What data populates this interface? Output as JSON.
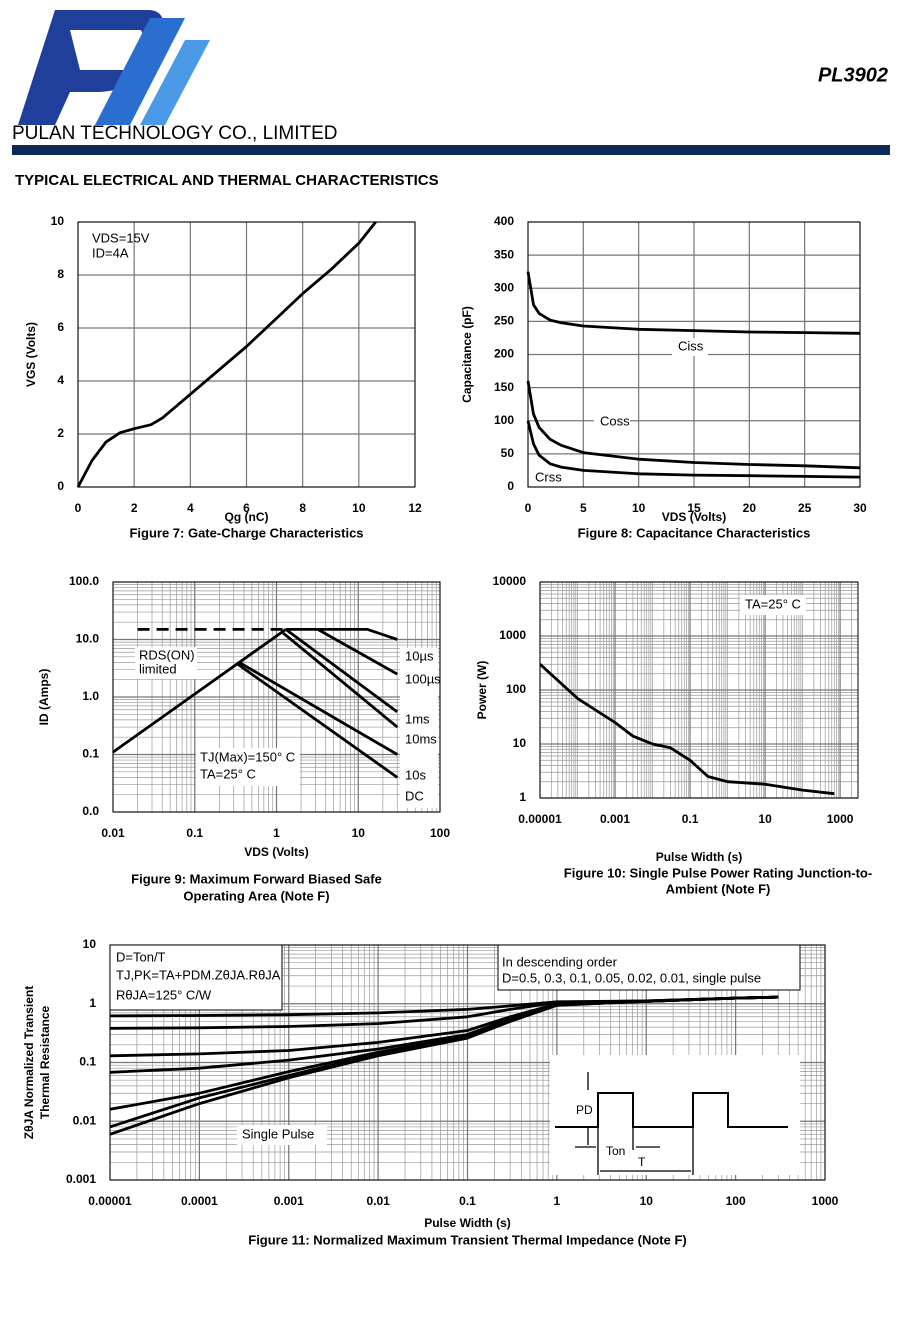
{
  "header": {
    "company": "PULAN TECHNOLOGY CO., LIMITED",
    "part": "PL3902",
    "section": "TYPICAL ELECTRICAL AND THERMAL CHARACTERISTICS"
  },
  "chart_data": [
    {
      "type": "line",
      "title": [
        "Figure 7: Gate-Charge Characteristics"
      ],
      "x_label": "Qg (nC)",
      "y_label": [
        "VGS (Volts)"
      ],
      "annotations": [
        "VDS=15V",
        "ID=4A"
      ],
      "x": [
        0,
        0.5,
        1,
        1.5,
        2,
        2.6,
        3,
        4,
        5,
        6,
        7,
        8,
        9,
        10,
        10.6
      ],
      "values": [
        0,
        1,
        1.7,
        2.05,
        2.2,
        2.35,
        2.6,
        3.5,
        4.4,
        5.3,
        6.3,
        7.3,
        8.2,
        9.2,
        10
      ],
      "color": "#000000",
      "xlim": [
        0,
        12
      ],
      "xticks": [
        0,
        2,
        4,
        6,
        8,
        10,
        12
      ],
      "ylim": [
        0,
        10
      ],
      "yticks": [
        0,
        2,
        4,
        6,
        8,
        10
      ],
      "grid": true
    },
    {
      "type": "line",
      "title": [
        "Figure 8: Capacitance Characteristics"
      ],
      "x_label": "VDS (Volts)",
      "y_label": [
        "Capacitance (pF)"
      ],
      "x": [
        0,
        0.5,
        1,
        2,
        3,
        5,
        10,
        15,
        20,
        25,
        30
      ],
      "series": [
        {
          "name": "Ciss",
          "color": "#000000",
          "values": [
            325,
            275,
            262,
            252,
            248,
            243,
            238,
            236,
            234,
            233,
            232
          ]
        },
        {
          "name": "Coss",
          "color": "#000000",
          "values": [
            160,
            110,
            90,
            72,
            63,
            52,
            42,
            37,
            34,
            32,
            29
          ]
        },
        {
          "name": "Crss",
          "color": "#000000",
          "values": [
            100,
            65,
            48,
            35,
            30,
            25,
            20,
            18,
            17,
            16,
            15
          ]
        }
      ],
      "xlim": [
        0,
        30
      ],
      "xticks": [
        0,
        5,
        10,
        15,
        20,
        25,
        30
      ],
      "ylim": [
        0,
        400
      ],
      "yticks": [
        0,
        50,
        100,
        150,
        200,
        250,
        300,
        350,
        400
      ],
      "grid": true
    },
    {
      "type": "line",
      "title": [
        "Figure 9: Maximum Forward Biased Safe",
        "Operating Area (Note F)"
      ],
      "x_label": "VDS (Volts)",
      "y_label": [
        "ID (Amps)"
      ],
      "annotations": [
        "RDS(ON)",
        "limited",
        "TJ(Max)=150° C",
        "TA=25° C"
      ],
      "series": [
        {
          "x": [
            0.01,
            1.3
          ],
          "values": [
            0.11,
            15
          ],
          "color": "#000000"
        },
        {
          "x": [
            0.02,
            1.2
          ],
          "values": [
            15,
            15
          ],
          "color": "#000000",
          "linestyle": "dashed"
        },
        {
          "name": "10µs",
          "x": [
            1.3,
            13,
            30
          ],
          "values": [
            15,
            15,
            10
          ],
          "color": "#000000"
        },
        {
          "name": "100µs",
          "x": [
            3.2,
            30
          ],
          "values": [
            15,
            2.5
          ],
          "color": "#000000"
        },
        {
          "name": "1ms",
          "x": [
            1.3,
            30
          ],
          "values": [
            15,
            0.55
          ],
          "color": "#000000"
        },
        {
          "name": "10ms",
          "x": [
            1.2,
            30
          ],
          "values": [
            13,
            0.3
          ],
          "color": "#000000"
        },
        {
          "name": "10s",
          "x": [
            0.35,
            30
          ],
          "values": [
            4,
            0.1
          ],
          "color": "#000000"
        },
        {
          "name": "DC",
          "x": [
            0.33,
            30
          ],
          "values": [
            3.8,
            0.04
          ],
          "color": "#000000"
        }
      ],
      "xscale": "log",
      "yscale": "log",
      "xlim": [
        0.01,
        100
      ],
      "xticks": [
        0.01,
        0.1,
        1,
        10,
        100
      ],
      "ylim": [
        0.01,
        100
      ],
      "yticks": [
        {
          "value": 0.01,
          "label": "0.0"
        },
        0.1,
        {
          "value": 1,
          "label": "1.0"
        },
        {
          "value": 10,
          "label": "10.0"
        },
        {
          "value": 100,
          "label": "100.0"
        }
      ],
      "grid": true
    },
    {
      "type": "line",
      "title": [
        "Figure 10: Single Pulse Power Rating Junction-to-",
        "Ambient (Note F)"
      ],
      "x_label": "Pulse Width (s)",
      "y_label": [
        "Power (W)"
      ],
      "annotations": [
        "TA=25° C"
      ],
      "x": [
        1e-05,
        0.0001,
        0.001,
        0.003,
        0.01,
        0.03,
        0.1,
        0.3,
        1,
        10,
        100,
        700
      ],
      "values": [
        300,
        70,
        25,
        14,
        10,
        8.5,
        5,
        2.5,
        2,
        1.8,
        1.4,
        1.2
      ],
      "color": "#000000",
      "xscale": "log",
      "yscale": "log",
      "xlim": [
        1e-05,
        3000
      ],
      "xticks": [
        1e-05,
        0.001,
        0.1,
        10,
        1000
      ],
      "ylim": [
        1,
        10000
      ],
      "yticks": [
        1,
        10,
        100,
        1000,
        10000
      ],
      "grid": true
    },
    {
      "type": "line",
      "title": [
        "Figure 11: Normalized Maximum Transient Thermal Impedance (Note F)"
      ],
      "x_label": "Pulse Width (s)",
      "y_label": [
        "ZθJA Normalized Transient",
        "Thermal Resistance"
      ],
      "annotations": [
        "D=Ton/T",
        "TJ,PK=TA+PDM.ZθJA.RθJA",
        "RθJA=125° C/W",
        "In descending order",
        "D=0.5, 0.3, 0.1, 0.05, 0.02, 0.01, single pulse",
        "Single Pulse"
      ],
      "inset_labels": [
        "PD",
        "Ton",
        "T"
      ],
      "x": [
        1e-05,
        0.0001,
        0.001,
        0.01,
        0.1,
        0.3,
        1,
        10,
        100,
        300
      ],
      "series": [
        {
          "color": "#000000",
          "values": [
            0.62,
            0.63,
            0.65,
            0.7,
            0.8,
            0.92,
            1.08,
            1.12,
            1.25,
            1.3
          ]
        },
        {
          "color": "#000000",
          "values": [
            0.38,
            0.39,
            0.41,
            0.46,
            0.6,
            0.8,
            1.05,
            1.12,
            1.25,
            1.3
          ]
        },
        {
          "color": "#000000",
          "values": [
            0.13,
            0.14,
            0.16,
            0.22,
            0.35,
            0.6,
            1.0,
            1.1,
            1.25,
            1.3
          ]
        },
        {
          "color": "#000000",
          "values": [
            0.068,
            0.08,
            0.11,
            0.17,
            0.3,
            0.55,
            0.98,
            1.1,
            1.25,
            1.3
          ]
        },
        {
          "color": "#000000",
          "values": [
            0.016,
            0.03,
            0.07,
            0.15,
            0.28,
            0.52,
            0.96,
            1.1,
            1.25,
            1.3
          ]
        },
        {
          "color": "#000000",
          "values": [
            0.008,
            0.025,
            0.06,
            0.14,
            0.27,
            0.5,
            0.95,
            1.1,
            1.25,
            1.3
          ]
        },
        {
          "color": "#000000",
          "values": [
            0.006,
            0.02,
            0.055,
            0.13,
            0.26,
            0.5,
            0.94,
            1.1,
            1.25,
            1.3
          ]
        }
      ],
      "xscale": "log",
      "yscale": "log",
      "xlim": [
        1e-05,
        1000
      ],
      "xticks": [
        1e-05,
        0.0001,
        0.001,
        0.01,
        0.1,
        1,
        10,
        100,
        1000
      ],
      "ylim": [
        0.001,
        10
      ],
      "yticks": [
        0.001,
        0.01,
        0.1,
        1,
        10
      ],
      "grid": true
    }
  ]
}
